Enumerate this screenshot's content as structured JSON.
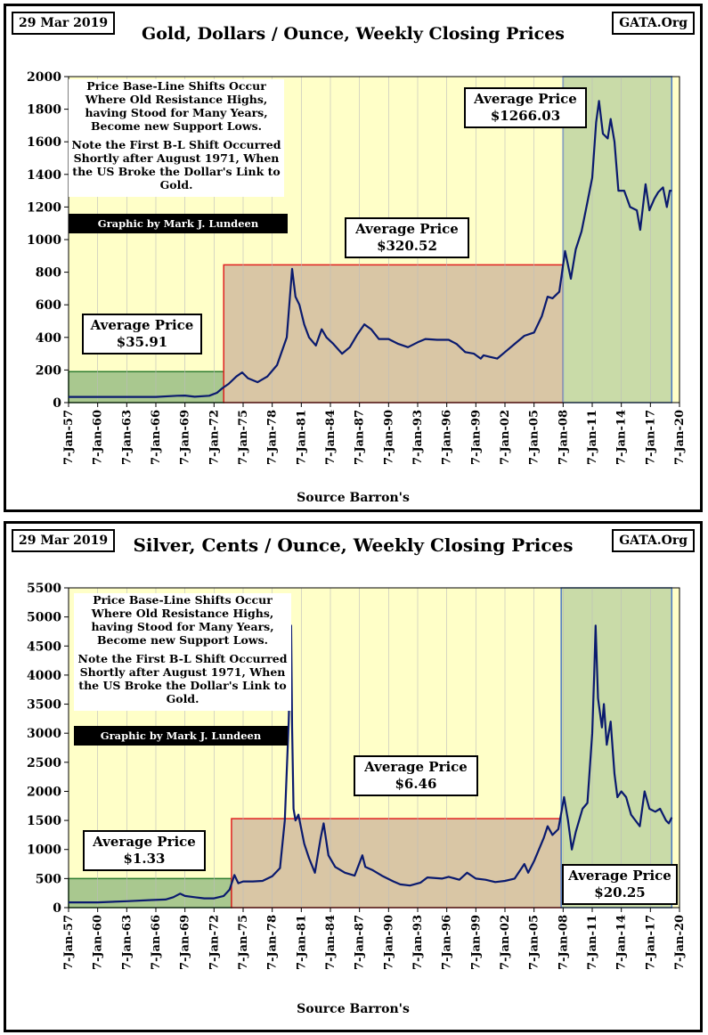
{
  "chart_data": [
    {
      "type": "line",
      "date": "29 Mar 2019",
      "org": "GATA.Org",
      "title": "Gold, Dollars / Ounce, Weekly Closing Prices",
      "xlabel": "Source Barron's",
      "x_tick_labels": [
        "7-Jan-57",
        "7-Jan-60",
        "7-Jan-63",
        "7-Jan-66",
        "7-Jan-69",
        "7-Jan-72",
        "7-Jan-75",
        "7-Jan-78",
        "7-Jan-81",
        "7-Jan-84",
        "7-Jan-87",
        "7-Jan-90",
        "7-Jan-93",
        "7-Jan-96",
        "7-Jan-99",
        "7-Jan-02",
        "7-Jan-05",
        "7-Jan-08",
        "7-Jan-11",
        "7-Jan-14",
        "7-Jan-17",
        "7-Jan-20"
      ],
      "y_ticks": [
        0,
        200,
        400,
        600,
        800,
        1000,
        1200,
        1400,
        1600,
        1800,
        2000
      ],
      "xlim": [
        1957.0,
        2020.0
      ],
      "ylim": [
        0,
        2000
      ],
      "note_lines_1": [
        "Price Base-Line Shifts Occur",
        "Where Old Resistance Highs,",
        "having Stood for Many Years,",
        "Become new Support Lows."
      ],
      "note_lines_2": [
        "Note the First B-L Shift Occurred",
        "Shortly after August 1971, When",
        "the US Broke the Dollar's Link to",
        "Gold."
      ],
      "credit": "Graphic by Mark J. Lundeen",
      "regions": [
        {
          "label": "Average Price",
          "value": "$35.91",
          "x_start": 1957.0,
          "x_end": 1973.0,
          "level": 190,
          "color": "#a9c88f",
          "border": "#2e7d32"
        },
        {
          "label": "Average Price",
          "value": "$320.52",
          "x_start": 1973.0,
          "x_end": 2008.0,
          "level": 845,
          "color": "#d9c6a5",
          "border": "#e02020"
        },
        {
          "label": "Average Price",
          "value": "$1266.03",
          "x_start": 2008.0,
          "x_end": 2019.2,
          "level": 2000,
          "color": "#c9dba8",
          "border": "#4a78c2"
        }
      ],
      "series": [
        {
          "color": "#0a1a6e",
          "x": [
            1957.0,
            1960.0,
            1963.0,
            1966.0,
            1968.2,
            1969.0,
            1970.0,
            1971.5,
            1972.3,
            1972.9,
            1973.5,
            1974.3,
            1974.9,
            1975.5,
            1976.5,
            1977.5,
            1978.5,
            1979.5,
            1980.05,
            1980.4,
            1980.8,
            1981.3,
            1981.8,
            1982.5,
            1983.1,
            1983.6,
            1984.3,
            1985.2,
            1986.0,
            1986.8,
            1987.5,
            1988.2,
            1989.0,
            1990.0,
            1991.0,
            1992.0,
            1993.0,
            1993.8,
            1995.0,
            1996.2,
            1997.0,
            1997.9,
            1998.8,
            1999.5,
            1999.8,
            2000.5,
            2001.2,
            2002.0,
            2003.0,
            2004.0,
            2005.0,
            2005.8,
            2006.4,
            2006.9,
            2007.6,
            2008.2,
            2008.8,
            2009.3,
            2009.9,
            2010.5,
            2011.0,
            2011.4,
            2011.7,
            2012.1,
            2012.6,
            2012.9,
            2013.3,
            2013.7,
            2014.3,
            2014.9,
            2015.6,
            2015.95,
            2016.5,
            2016.9,
            2017.4,
            2017.8,
            2018.3,
            2018.7,
            2019.0,
            2019.2
          ],
          "y": [
            35,
            35,
            35,
            35,
            42,
            43,
            36,
            42,
            60,
            90,
            115,
            160,
            185,
            150,
            125,
            160,
            230,
            400,
            820,
            650,
            600,
            480,
            400,
            350,
            450,
            400,
            360,
            300,
            340,
            420,
            480,
            450,
            390,
            390,
            360,
            340,
            370,
            390,
            385,
            385,
            360,
            310,
            300,
            270,
            290,
            280,
            270,
            310,
            360,
            410,
            430,
            530,
            650,
            640,
            680,
            930,
            760,
            940,
            1050,
            1230,
            1380,
            1720,
            1850,
            1650,
            1620,
            1740,
            1600,
            1300,
            1300,
            1200,
            1180,
            1060,
            1340,
            1180,
            1250,
            1290,
            1320,
            1200,
            1300,
            1300
          ]
        }
      ]
    },
    {
      "type": "line",
      "date": "29 Mar 2019",
      "org": "GATA.Org",
      "title": "Silver, Cents / Ounce, Weekly Closing Prices",
      "xlabel": "Source Barron's",
      "x_tick_labels": [
        "7-Jan-57",
        "7-Jan-60",
        "7-Jan-63",
        "7-Jan-66",
        "7-Jan-69",
        "7-Jan-72",
        "7-Jan-75",
        "7-Jan-78",
        "7-Jan-81",
        "7-Jan-84",
        "7-Jan-87",
        "7-Jan-90",
        "7-Jan-93",
        "7-Jan-96",
        "7-Jan-99",
        "7-Jan-02",
        "7-Jan-05",
        "7-Jan-08",
        "7-Jan-11",
        "7-Jan-14",
        "7-Jan-17",
        "7-Jan-20"
      ],
      "y_ticks": [
        0,
        500,
        1000,
        1500,
        2000,
        2500,
        3000,
        3500,
        4000,
        4500,
        5000,
        5500
      ],
      "xlim": [
        1957.0,
        2020.0
      ],
      "ylim": [
        0,
        5500
      ],
      "note_lines_1": [
        "Price Base-Line Shifts Occur",
        "Where Old Resistance Highs,",
        "having Stood for Many Years,",
        "Become new Support Lows."
      ],
      "note_lines_2": [
        "Note the First B-L Shift Occurred",
        "Shortly after August 1971, When",
        "the US Broke the Dollar's Link to",
        "Gold."
      ],
      "credit": "Graphic by Mark J. Lundeen",
      "regions": [
        {
          "label": "Average Price",
          "value": "$1.33",
          "x_start": 1957.0,
          "x_end": 1973.8,
          "level": 500,
          "color": "#a9c88f",
          "border": "#2e7d32"
        },
        {
          "label": "Average Price",
          "value": "$6.46",
          "x_start": 1973.8,
          "x_end": 2007.8,
          "level": 1530,
          "color": "#d9c6a5",
          "border": "#e02020"
        },
        {
          "label": "Average Price",
          "value": "$20.25",
          "x_start": 2007.8,
          "x_end": 2019.2,
          "level": 5500,
          "color": "#c9dba8",
          "border": "#4a78c2"
        }
      ],
      "series": [
        {
          "color": "#0a1a6e",
          "x": [
            1957.0,
            1960.0,
            1963.0,
            1965.5,
            1967.0,
            1967.8,
            1968.5,
            1969.0,
            1970.0,
            1971.0,
            1972.0,
            1973.0,
            1973.6,
            1974.1,
            1974.5,
            1975.0,
            1976.0,
            1977.0,
            1978.0,
            1978.8,
            1979.3,
            1979.7,
            1979.95,
            1980.05,
            1980.2,
            1980.4,
            1980.7,
            1981.3,
            1981.8,
            1982.4,
            1983.0,
            1983.3,
            1983.8,
            1984.5,
            1985.5,
            1986.5,
            1987.3,
            1987.6,
            1988.3,
            1989.3,
            1990.5,
            1991.2,
            1992.2,
            1993.3,
            1994.0,
            1995.5,
            1996.2,
            1997.3,
            1998.1,
            1999.0,
            2000.0,
            2001.0,
            2002.0,
            2003.0,
            2004.0,
            2004.4,
            2005.0,
            2006.0,
            2006.4,
            2006.9,
            2007.5,
            2008.1,
            2008.5,
            2008.9,
            2009.3,
            2010.0,
            2010.5,
            2011.0,
            2011.2,
            2011.35,
            2011.6,
            2012.0,
            2012.2,
            2012.5,
            2012.9,
            2013.3,
            2013.6,
            2014.0,
            2014.5,
            2015.0,
            2015.9,
            2016.4,
            2016.9,
            2017.5,
            2018.0,
            2018.6,
            2018.9,
            2019.2
          ],
          "y": [
            90,
            90,
            110,
            130,
            140,
            180,
            240,
            200,
            180,
            160,
            160,
            200,
            310,
            560,
            420,
            450,
            450,
            460,
            540,
            680,
            1500,
            3200,
            4850,
            3100,
            1700,
            1500,
            1600,
            1100,
            850,
            600,
            1200,
            1450,
            900,
            700,
            600,
            550,
            900,
            700,
            650,
            550,
            450,
            400,
            380,
            430,
            520,
            500,
            530,
            480,
            600,
            500,
            480,
            440,
            460,
            500,
            750,
            600,
            800,
            1200,
            1400,
            1250,
            1350,
            1900,
            1500,
            1000,
            1300,
            1700,
            1800,
            3000,
            4000,
            4850,
            3600,
            3100,
            3500,
            2800,
            3200,
            2300,
            1900,
            2000,
            1900,
            1600,
            1400,
            2000,
            1700,
            1650,
            1700,
            1500,
            1450,
            1550
          ]
        }
      ]
    }
  ]
}
